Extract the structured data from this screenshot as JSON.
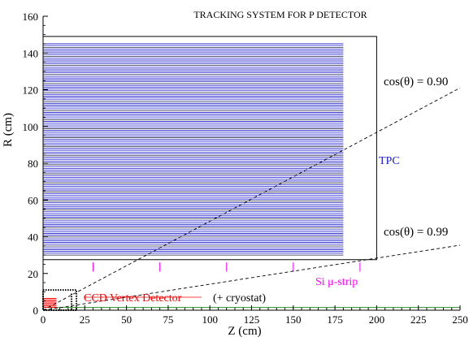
{
  "chart_data": {
    "type": "schematic",
    "title": "TRACKING SYSTEM FOR P DETECTOR",
    "xlabel": "Z (cm)",
    "ylabel": "R (cm)",
    "xlim": [
      0,
      250
    ],
    "ylim": [
      0,
      160
    ],
    "x_ticks": [
      0,
      25,
      50,
      75,
      100,
      125,
      150,
      175,
      200,
      225,
      250
    ],
    "y_ticks": [
      0,
      20,
      40,
      60,
      80,
      100,
      120,
      140,
      160
    ],
    "tpc": {
      "label": "TPC",
      "outer_box": {
        "z": [
          0,
          200
        ],
        "r": [
          27.5,
          149
        ]
      },
      "pad_rows": {
        "z": [
          0,
          180
        ],
        "r_min": 30,
        "r_max": 145,
        "count": 118
      },
      "color": "#1a1acc"
    },
    "cos_lines": [
      {
        "label": "cos(θ) = 0.90",
        "from": [
          0,
          0
        ],
        "to": [
          250,
          121
        ]
      },
      {
        "label": "cos(θ) = 0.99",
        "from": [
          0,
          0
        ],
        "to": [
          250,
          35.4
        ]
      }
    ],
    "si_strip": {
      "label": "Si μ-strip",
      "z_positions": [
        30,
        70,
        110,
        150,
        190
      ],
      "r": [
        21,
        26
      ],
      "color": "#ff00ff"
    },
    "ccd_vertex": {
      "label": "CCD Vertex Detector",
      "suffix": "(+ cryostat)",
      "color": "#ff0000",
      "layers_r": [
        1.6,
        2.4,
        3.2,
        4.0,
        4.8,
        5.6,
        6.4
      ],
      "z_max": 8,
      "cryostat": {
        "z": [
          0,
          20
        ],
        "r": [
          0,
          11
        ]
      }
    },
    "beamline": {
      "r": [
        0,
        1.5
      ],
      "z": [
        0,
        250
      ],
      "color": "#2e8b2e"
    }
  }
}
